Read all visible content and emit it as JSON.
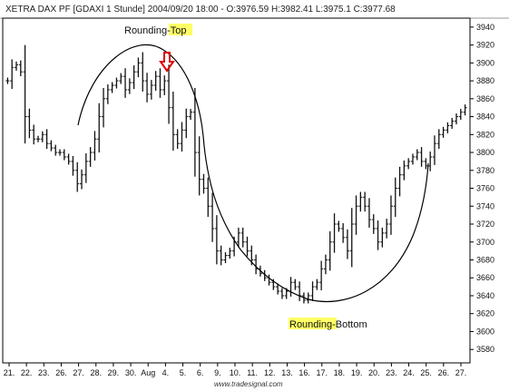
{
  "header": {
    "text": "XETRA DAX PF     [GDAXI  1 Stunde] 2004/09/20 18:00 - O:3976.59 H:3982.41 L:3975.1 C:3977.68"
  },
  "footer": {
    "text": "www.tradesignal.com"
  },
  "chart_data": {
    "type": "line",
    "style": "ohlc-bars",
    "y_axis_position": "right",
    "ylim": [
      3565,
      3950
    ],
    "y_ticks": [
      3580,
      3600,
      3620,
      3640,
      3660,
      3680,
      3700,
      3720,
      3740,
      3760,
      3780,
      3800,
      3820,
      3840,
      3860,
      3880,
      3900,
      3920,
      3940
    ],
    "x_tick_labels": [
      "21.",
      "22.",
      "23.",
      "26.",
      "27.",
      "28.",
      "29.",
      "30.",
      "Aug",
      "4.",
      "5.",
      "6.",
      "9.",
      "10.",
      "11.",
      "12.",
      "13.",
      "16.",
      "17.",
      "18.",
      "19.",
      "20.",
      "23.",
      "24.",
      "25.",
      "26.",
      "27."
    ],
    "series": [
      {
        "values": [
          3880,
          3895,
          3898,
          3890,
          3840,
          3825,
          3815,
          3815,
          3820,
          3810,
          3805,
          3800,
          3800,
          3795,
          3790,
          3780,
          3765,
          3775,
          3790,
          3800,
          3815,
          3840,
          3860,
          3870,
          3875,
          3880,
          3885,
          3870,
          3878,
          3890,
          3900,
          3880,
          3865,
          3875,
          3885,
          3870,
          3880,
          3850,
          3820,
          3810,
          3825,
          3840,
          3845,
          3800,
          3770,
          3760,
          3740,
          3715,
          3690,
          3680,
          3685,
          3690,
          3700,
          3710,
          3700,
          3690,
          3680,
          3670,
          3665,
          3660,
          3655,
          3650,
          3645,
          3640,
          3645,
          3655,
          3650,
          3640,
          3635,
          3640,
          3650,
          3655,
          3670,
          3680,
          3700,
          3720,
          3715,
          3705,
          3690,
          3720,
          3740,
          3750,
          3740,
          3725,
          3715,
          3700,
          3710,
          3720,
          3740,
          3760,
          3775,
          3785,
          3790,
          3795,
          3800,
          3790,
          3785,
          3795,
          3810,
          3820,
          3825,
          3830,
          3835,
          3840,
          3845,
          3850
        ]
      }
    ],
    "annotations": [
      {
        "text_plain": "Rounding-",
        "text_highlight": "Top"
      },
      {
        "text_highlight": "Rounding",
        "text_plain": "-Bottom"
      }
    ],
    "colors": {
      "bars": "#111111",
      "highlight": "#ffff66",
      "arrow": "#dd0000",
      "curve": "#000000"
    }
  }
}
